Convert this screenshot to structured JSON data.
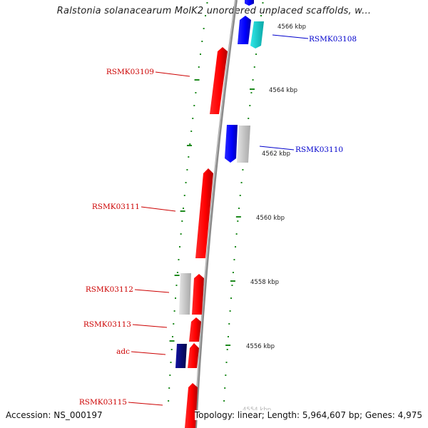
{
  "title": "Ralstonia solanacearum MolK2 unordered unplaced scaffolds, w...",
  "footer": {
    "accession": "Accession: NS_000197",
    "summary": "Topology: linear; Length: 5,964,607 bp; Genes: 4,975"
  },
  "colors": {
    "forward_gene": "#ff1a1a",
    "reverse_gene": "#1a1aff",
    "dark_gene": "#0a0a8a",
    "rna_gene": "#18d0d0",
    "pseudo_gene": "#c8c8c8",
    "backbone": "#8a8a8a",
    "tick": "#1e8a1e",
    "forward_label": "#cc0000",
    "reverse_label": "#0000cc"
  },
  "position_labels": [
    "4566 kbp",
    "4564 kbp",
    "4562 kbp",
    "4560 kbp",
    "4558 kbp",
    "4556 kbp",
    "4554 kbp"
  ],
  "gene_labels": {
    "forward": [
      "RSMK03109",
      "RSMK03111",
      "RSMK03112",
      "RSMK03113",
      "adc",
      "RSMK03115"
    ],
    "reverse": [
      "RSMK03108",
      "RSMK03110"
    ]
  }
}
